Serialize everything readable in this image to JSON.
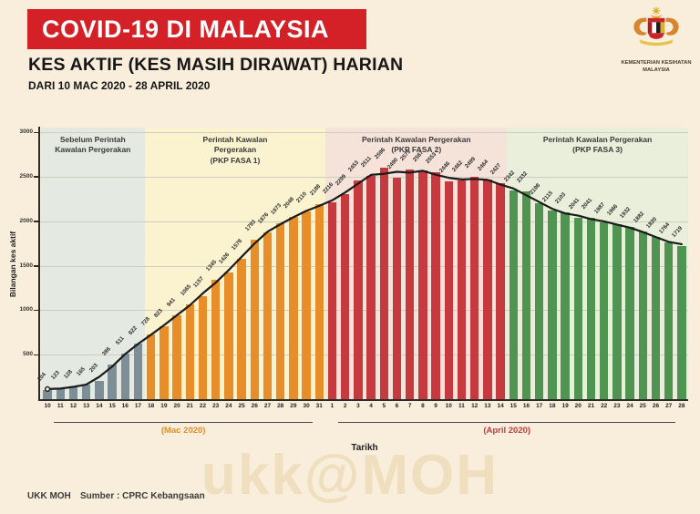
{
  "header": {
    "banner_title": "COVID-19 DI MALAYSIA",
    "banner_color": "#d42127",
    "title": "KES AKTIF (KES MASIH DIRAWAT) HARIAN",
    "date_range": "DARI 10 MAC 2020 - 28 APRIL 2020",
    "ministry_name": "KEMENTERIAN KESIHATAN MALAYSIA"
  },
  "chart_data": {
    "type": "bar",
    "title": "KES AKTIF (KES MASIH DIRAWAT) HARIAN",
    "xlabel": "Tarikh",
    "ylabel": "Bilangan kes aktif",
    "ylim": [
      0,
      3000
    ],
    "yticks": [
      500,
      1000,
      1500,
      2000,
      2500,
      3000
    ],
    "grid": true,
    "trend_line": {
      "type": "moving_average",
      "window": 3,
      "color": "#1b1b1b"
    },
    "phases": [
      {
        "label": "Sebelum Perintah Kawalan Pergerakan",
        "sublabel": "",
        "start": 0,
        "count": 8,
        "bar_color": "#7d8e96",
        "bg_color": "#e4e9e2"
      },
      {
        "label": "Perintah Kawalan Pergerakan",
        "sublabel": "(PKP FASA 1)",
        "start": 8,
        "count": 14,
        "bar_color": "#e78e2b",
        "bg_color": "#fbf3d0"
      },
      {
        "label": "Perintah Kawalan Pergerakan",
        "sublabel": "(PKP FASA 2)",
        "start": 22,
        "count": 14,
        "bar_color": "#c43a3e",
        "bg_color": "#f5e3da"
      },
      {
        "label": "Perintah Kawalan Pergerakan",
        "sublabel": "(PKP FASA 3)",
        "start": 36,
        "count": 14,
        "bar_color": "#4f9451",
        "bg_color": "#e9efdb"
      }
    ],
    "month_groups": [
      {
        "label": "(Mac 2020)",
        "color": "#e78e2b",
        "start": 0,
        "count": 22
      },
      {
        "label": "(April 2020)",
        "color": "#c43a3e",
        "start": 22,
        "count": 28
      }
    ],
    "categories": [
      "10",
      "11",
      "12",
      "13",
      "14",
      "15",
      "16",
      "17",
      "18",
      "19",
      "20",
      "21",
      "22",
      "23",
      "24",
      "25",
      "26",
      "27",
      "28",
      "29",
      "30",
      "31",
      "1",
      "2",
      "3",
      "4",
      "5",
      "6",
      "7",
      "8",
      "9",
      "10",
      "11",
      "12",
      "13",
      "14",
      "15",
      "16",
      "17",
      "18",
      "19",
      "20",
      "21",
      "22",
      "23",
      "24",
      "25",
      "26",
      "27",
      "28"
    ],
    "values": [
      104,
      123,
      128,
      165,
      203,
      386,
      511,
      622,
      728,
      823,
      941,
      1065,
      1157,
      1345,
      1426,
      1578,
      1793,
      1876,
      1973,
      2048,
      2110,
      2188,
      2216,
      2299,
      2453,
      2511,
      2596,
      2490,
      2579,
      2567,
      2553,
      2446,
      2462,
      2499,
      2464,
      2427,
      2342,
      2332,
      2198,
      2115,
      2103,
      2041,
      2041,
      1987,
      1966,
      1932,
      1882,
      1820,
      1764,
      1719
    ]
  },
  "footer": {
    "left": "UKK MOH",
    "source": "Sumber : CPRC Kebangsaan",
    "watermark": "ukk@MOH"
  }
}
